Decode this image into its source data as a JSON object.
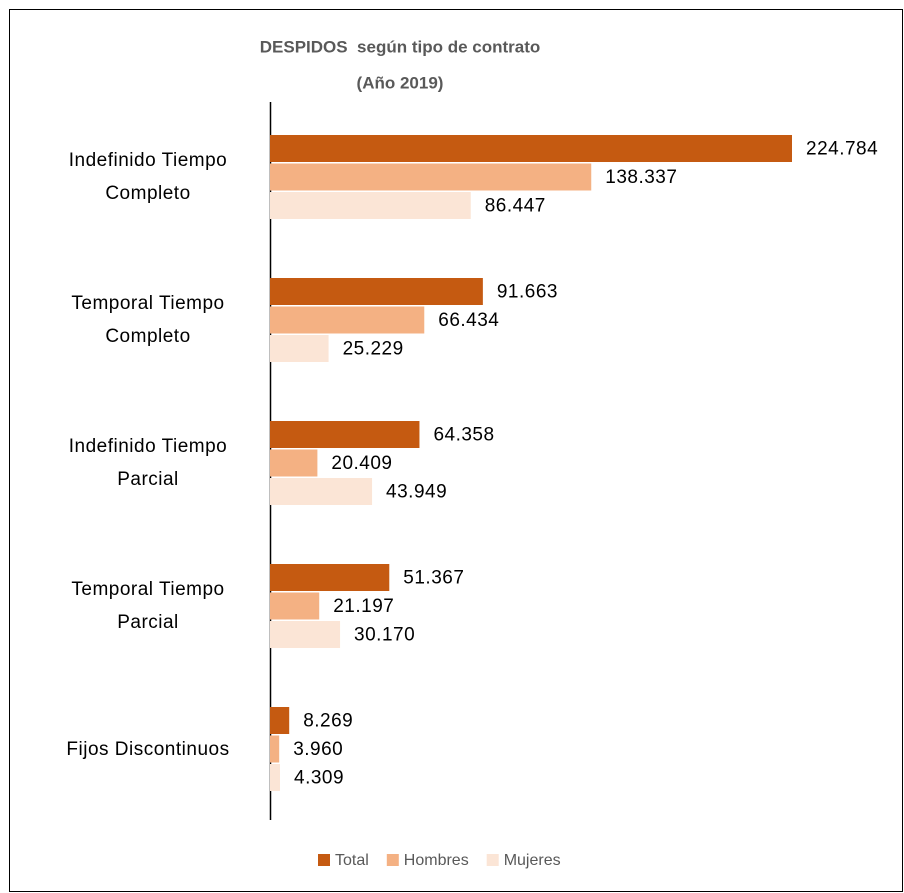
{
  "chart_data": {
    "type": "bar",
    "orientation": "horizontal",
    "title": "DESPIDOS  según tipo de contrato",
    "subtitle": "(Año 2019)",
    "categories": [
      "Indefinido Tiempo Completo",
      "Temporal Tiempo Completo",
      "Indefinido Tiempo Parcial",
      "Temporal Tiempo Parcial",
      "Fijos Discontinuos"
    ],
    "series": [
      {
        "name": "Total",
        "color": "#c55a11",
        "values": [
          224784,
          91663,
          64358,
          51367,
          8269
        ],
        "value_labels": [
          "224.784",
          "91.663",
          "64.358",
          "51.367",
          "8.269"
        ]
      },
      {
        "name": "Hombres",
        "color": "#f4b183",
        "values": [
          138337,
          66434,
          20409,
          21197,
          3960
        ],
        "value_labels": [
          "138.337",
          "66.434",
          "20.409",
          "21.197",
          "3.960"
        ]
      },
      {
        "name": "Mujeres",
        "color": "#fbe5d6",
        "values": [
          86447,
          25229,
          43949,
          30170,
          4309
        ],
        "value_labels": [
          "86.447",
          "25.229",
          "43.949",
          "30.170",
          "4.309"
        ]
      }
    ],
    "legend": "bottom"
  }
}
